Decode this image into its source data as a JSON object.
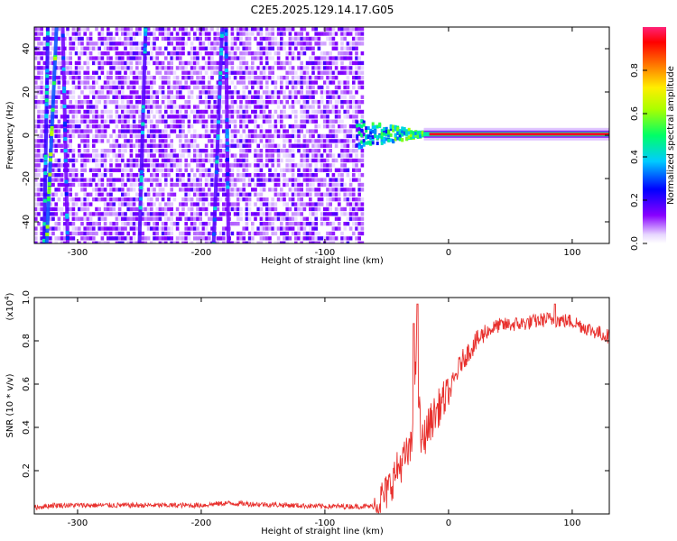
{
  "figure": {
    "title": "C2E5.2025.129.14.17.G05"
  },
  "chart_data": [
    {
      "type": "heatmap",
      "xlabel": "Height of straight line (km)",
      "ylabel": "Frequency (Hz)",
      "xlim": [
        -335,
        130
      ],
      "ylim": [
        -50,
        50
      ],
      "xticks": [
        -300,
        -200,
        -100,
        0,
        100
      ],
      "yticks": [
        -40,
        -20,
        0,
        20,
        40
      ],
      "grid": false,
      "colorbar": {
        "label": "Normalized spectral amplitude",
        "range": [
          0,
          1
        ],
        "ticks": [
          0.0,
          0.2,
          0.4,
          0.6,
          0.8
        ],
        "colormap": "rainbow: white -> violet -> blue -> cyan -> green -> yellow -> red -> magenta"
      },
      "features": {
        "noise_region_x": [
          -335,
          -70
        ],
        "noise_region_y": [
          -50,
          50
        ],
        "noise_level": 0.18,
        "streaks": [
          {
            "x_top": -324,
            "x_bottom": -327,
            "level": 0.35
          },
          {
            "x_top": -317,
            "x_bottom": -325,
            "level": 0.5
          },
          {
            "x_top": -312,
            "x_bottom": -308,
            "level": 0.25
          },
          {
            "x_top": -245,
            "x_bottom": -250,
            "level": 0.3
          },
          {
            "x_top": -183,
            "x_bottom": -190,
            "level": 0.3
          },
          {
            "x_top": -180,
            "x_bottom": -178,
            "level": 0.25
          }
        ],
        "transition_x": [
          -75,
          -20
        ],
        "carrier": {
          "x_range": [
            -20,
            130
          ],
          "frequency": 0.5,
          "level": 0.95
        }
      }
    },
    {
      "type": "line",
      "xlabel": "Height of straight line (km)",
      "ylabel": "SNR (10 * v/v)",
      "yscale_label": "(x10",
      "yscale_exponent": "4",
      "yscale_suffix": ")",
      "xlim": [
        -335,
        130
      ],
      "ylim": [
        0,
        1.0
      ],
      "xticks": [
        -300,
        -200,
        -100,
        0,
        100
      ],
      "yticks": [
        0.2,
        0.4,
        0.6,
        0.8,
        1.0
      ],
      "color": "#e8302d",
      "grid": false,
      "profile": [
        {
          "x": -335,
          "y": 0.03
        },
        {
          "x": -320,
          "y": 0.04
        },
        {
          "x": -200,
          "y": 0.04
        },
        {
          "x": -180,
          "y": 0.05
        },
        {
          "x": -100,
          "y": 0.035
        },
        {
          "x": -60,
          "y": 0.035
        },
        {
          "x": -50,
          "y": 0.1
        },
        {
          "x": -40,
          "y": 0.22
        },
        {
          "x": -30,
          "y": 0.3
        },
        {
          "x": -26,
          "y": 0.72
        },
        {
          "x": -22,
          "y": 0.32
        },
        {
          "x": -15,
          "y": 0.42
        },
        {
          "x": -5,
          "y": 0.52
        },
        {
          "x": 0,
          "y": 0.55
        },
        {
          "x": 10,
          "y": 0.7
        },
        {
          "x": 20,
          "y": 0.78
        },
        {
          "x": 30,
          "y": 0.84
        },
        {
          "x": 40,
          "y": 0.87
        },
        {
          "x": 60,
          "y": 0.88
        },
        {
          "x": 80,
          "y": 0.9
        },
        {
          "x": 100,
          "y": 0.89
        },
        {
          "x": 115,
          "y": 0.85
        },
        {
          "x": 130,
          "y": 0.82
        }
      ],
      "peaks": [
        {
          "x": -25,
          "y": 0.97
        },
        {
          "x": -28,
          "y": 0.88
        },
        {
          "x": 86,
          "y": 0.97
        }
      ]
    }
  ]
}
